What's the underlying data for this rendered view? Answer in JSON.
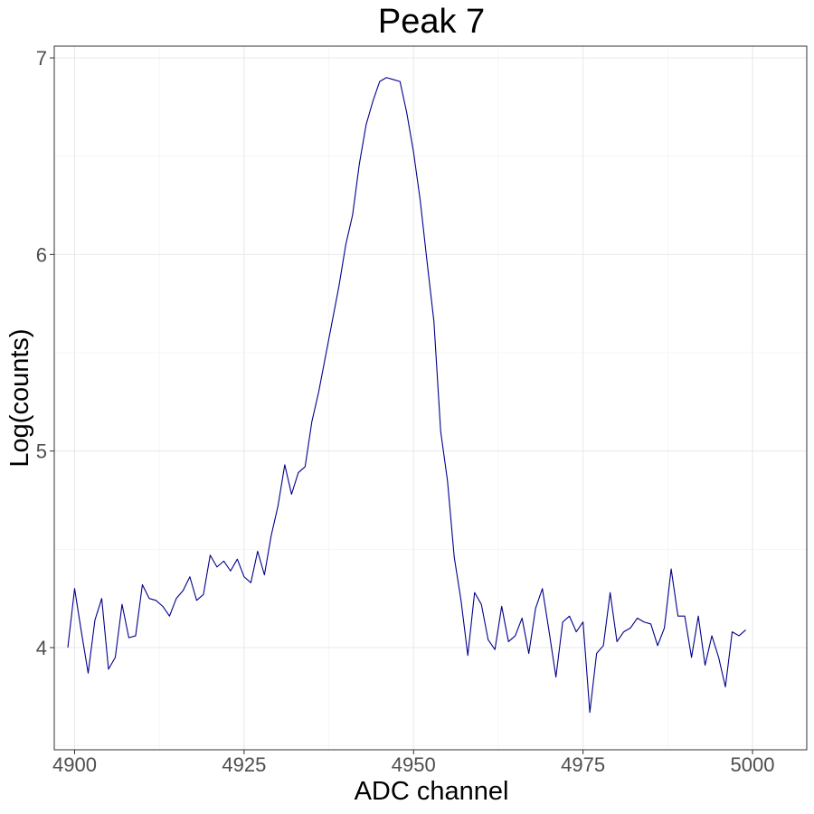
{
  "chart_data": {
    "type": "line",
    "title": "Peak 7",
    "xlabel": "ADC channel",
    "ylabel": "Log(counts)",
    "xlim": [
      4897,
      5008
    ],
    "ylim": [
      3.48,
      7.06
    ],
    "x_ticks": [
      4900,
      4925,
      4950,
      4975,
      5000
    ],
    "y_ticks": [
      4,
      5,
      6,
      7
    ],
    "x_minor": [
      4912.5,
      4937.5,
      4962.5,
      4987.5
    ],
    "y_minor": [
      3.5,
      4.5,
      5.5,
      6.5
    ],
    "grid": true,
    "line_color": "#00008b",
    "series": [
      {
        "x": [
          4899,
          4900,
          4901,
          4902,
          4903,
          4904,
          4905,
          4906,
          4907,
          4908,
          4909,
          4910,
          4911,
          4912,
          4913,
          4914,
          4915,
          4916,
          4917,
          4918,
          4919,
          4920,
          4921,
          4922,
          4923,
          4924,
          4925,
          4926,
          4927,
          4928,
          4929,
          4930,
          4931,
          4932,
          4933,
          4934,
          4935,
          4936,
          4937,
          4938,
          4939,
          4940,
          4941,
          4942,
          4943,
          4944,
          4945,
          4946,
          4947,
          4948,
          4949,
          4950,
          4951,
          4952,
          4953,
          4954,
          4955,
          4956,
          4957,
          4958,
          4959,
          4960,
          4961,
          4962,
          4963,
          4964,
          4965,
          4966,
          4967,
          4968,
          4969,
          4970,
          4971,
          4972,
          4973,
          4974,
          4975,
          4976,
          4977,
          4978,
          4979,
          4980,
          4981,
          4982,
          4983,
          4984,
          4985,
          4986,
          4987,
          4988,
          4989,
          4990,
          4991,
          4992,
          4993,
          4994,
          4995,
          4996,
          4997,
          4998,
          4999
        ],
        "y": [
          4.0,
          4.3,
          4.08,
          3.87,
          4.14,
          4.25,
          3.89,
          3.95,
          4.22,
          4.05,
          4.06,
          4.32,
          4.25,
          4.24,
          4.21,
          4.16,
          4.25,
          4.29,
          4.36,
          4.24,
          4.27,
          4.47,
          4.41,
          4.44,
          4.39,
          4.45,
          4.36,
          4.33,
          4.49,
          4.37,
          4.57,
          4.72,
          4.93,
          4.78,
          4.89,
          4.92,
          5.15,
          5.3,
          5.48,
          5.66,
          5.84,
          6.05,
          6.2,
          6.46,
          6.66,
          6.78,
          6.88,
          6.9,
          6.89,
          6.88,
          6.72,
          6.52,
          6.27,
          5.96,
          5.66,
          5.1,
          4.85,
          4.46,
          4.24,
          3.96,
          4.28,
          4.22,
          4.04,
          3.99,
          4.21,
          4.03,
          4.06,
          4.15,
          3.97,
          4.2,
          4.3,
          4.08,
          3.85,
          4.13,
          4.16,
          4.08,
          4.13,
          3.67,
          3.97,
          4.01,
          4.28,
          4.03,
          4.08,
          4.1,
          4.15,
          4.13,
          4.12,
          4.01,
          4.1,
          4.4,
          4.16,
          4.16,
          3.95,
          4.16,
          3.91,
          4.06,
          3.95,
          3.8,
          4.08,
          4.06,
          4.09
        ]
      }
    ]
  }
}
